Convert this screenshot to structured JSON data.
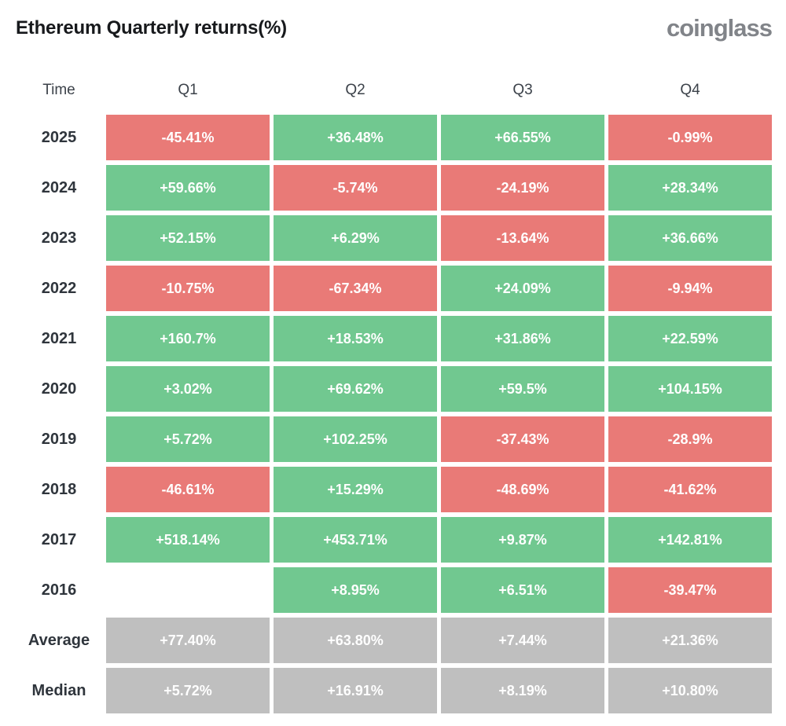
{
  "header": {
    "title": "Ethereum Quarterly returns(%)",
    "logo": "coinglass"
  },
  "colors": {
    "positive": "#71c890",
    "negative": "#e97a77",
    "summary": "#bfbfbf"
  },
  "table": {
    "columns": [
      "Time",
      "Q1",
      "Q2",
      "Q3",
      "Q4"
    ],
    "rows": [
      {
        "label": "2025",
        "cells": [
          {
            "text": "-45.41%",
            "type": "negative"
          },
          {
            "text": "+36.48%",
            "type": "positive"
          },
          {
            "text": "+66.55%",
            "type": "positive"
          },
          {
            "text": "-0.99%",
            "type": "negative"
          }
        ]
      },
      {
        "label": "2024",
        "cells": [
          {
            "text": "+59.66%",
            "type": "positive"
          },
          {
            "text": "-5.74%",
            "type": "negative"
          },
          {
            "text": "-24.19%",
            "type": "negative"
          },
          {
            "text": "+28.34%",
            "type": "positive"
          }
        ]
      },
      {
        "label": "2023",
        "cells": [
          {
            "text": "+52.15%",
            "type": "positive"
          },
          {
            "text": "+6.29%",
            "type": "positive"
          },
          {
            "text": "-13.64%",
            "type": "negative"
          },
          {
            "text": "+36.66%",
            "type": "positive"
          }
        ]
      },
      {
        "label": "2022",
        "cells": [
          {
            "text": "-10.75%",
            "type": "negative"
          },
          {
            "text": "-67.34%",
            "type": "negative"
          },
          {
            "text": "+24.09%",
            "type": "positive"
          },
          {
            "text": "-9.94%",
            "type": "negative"
          }
        ]
      },
      {
        "label": "2021",
        "cells": [
          {
            "text": "+160.7%",
            "type": "positive"
          },
          {
            "text": "+18.53%",
            "type": "positive"
          },
          {
            "text": "+31.86%",
            "type": "positive"
          },
          {
            "text": "+22.59%",
            "type": "positive"
          }
        ]
      },
      {
        "label": "2020",
        "cells": [
          {
            "text": "+3.02%",
            "type": "positive"
          },
          {
            "text": "+69.62%",
            "type": "positive"
          },
          {
            "text": "+59.5%",
            "type": "positive"
          },
          {
            "text": "+104.15%",
            "type": "positive"
          }
        ]
      },
      {
        "label": "2019",
        "cells": [
          {
            "text": "+5.72%",
            "type": "positive"
          },
          {
            "text": "+102.25%",
            "type": "positive"
          },
          {
            "text": "-37.43%",
            "type": "negative"
          },
          {
            "text": "-28.9%",
            "type": "negative"
          }
        ]
      },
      {
        "label": "2018",
        "cells": [
          {
            "text": "-46.61%",
            "type": "negative"
          },
          {
            "text": "+15.29%",
            "type": "positive"
          },
          {
            "text": "-48.69%",
            "type": "negative"
          },
          {
            "text": "-41.62%",
            "type": "negative"
          }
        ]
      },
      {
        "label": "2017",
        "cells": [
          {
            "text": "+518.14%",
            "type": "positive"
          },
          {
            "text": "+453.71%",
            "type": "positive"
          },
          {
            "text": "+9.87%",
            "type": "positive"
          },
          {
            "text": "+142.81%",
            "type": "positive"
          }
        ]
      },
      {
        "label": "2016",
        "cells": [
          {
            "text": "",
            "type": "empty"
          },
          {
            "text": "+8.95%",
            "type": "positive"
          },
          {
            "text": "+6.51%",
            "type": "positive"
          },
          {
            "text": "-39.47%",
            "type": "negative"
          }
        ]
      },
      {
        "label": "Average",
        "cells": [
          {
            "text": "+77.40%",
            "type": "summary"
          },
          {
            "text": "+63.80%",
            "type": "summary"
          },
          {
            "text": "+7.44%",
            "type": "summary"
          },
          {
            "text": "+21.36%",
            "type": "summary"
          }
        ]
      },
      {
        "label": "Median",
        "cells": [
          {
            "text": "+5.72%",
            "type": "summary"
          },
          {
            "text": "+16.91%",
            "type": "summary"
          },
          {
            "text": "+8.19%",
            "type": "summary"
          },
          {
            "text": "+10.80%",
            "type": "summary"
          }
        ]
      }
    ]
  },
  "chart_data": {
    "type": "heatmap",
    "title": "Ethereum Quarterly returns(%)",
    "columns": [
      "Q1",
      "Q2",
      "Q3",
      "Q4"
    ],
    "rows": [
      "2025",
      "2024",
      "2023",
      "2022",
      "2021",
      "2020",
      "2019",
      "2018",
      "2017",
      "2016",
      "Average",
      "Median"
    ],
    "values": [
      [
        -45.41,
        36.48,
        66.55,
        -0.99
      ],
      [
        59.66,
        -5.74,
        -24.19,
        28.34
      ],
      [
        52.15,
        6.29,
        -13.64,
        36.66
      ],
      [
        -10.75,
        -67.34,
        24.09,
        -9.94
      ],
      [
        160.7,
        18.53,
        31.86,
        22.59
      ],
      [
        3.02,
        69.62,
        59.5,
        104.15
      ],
      [
        5.72,
        102.25,
        -37.43,
        -28.9
      ],
      [
        -46.61,
        15.29,
        -48.69,
        -41.62
      ],
      [
        518.14,
        453.71,
        9.87,
        142.81
      ],
      [
        null,
        8.95,
        6.51,
        -39.47
      ],
      [
        77.4,
        63.8,
        7.44,
        21.36
      ],
      [
        5.72,
        16.91,
        8.19,
        10.8
      ]
    ],
    "legend_position": "none",
    "color_rule": "green=positive, red=negative, gray=Average/Median summary rows, blank=no data"
  }
}
